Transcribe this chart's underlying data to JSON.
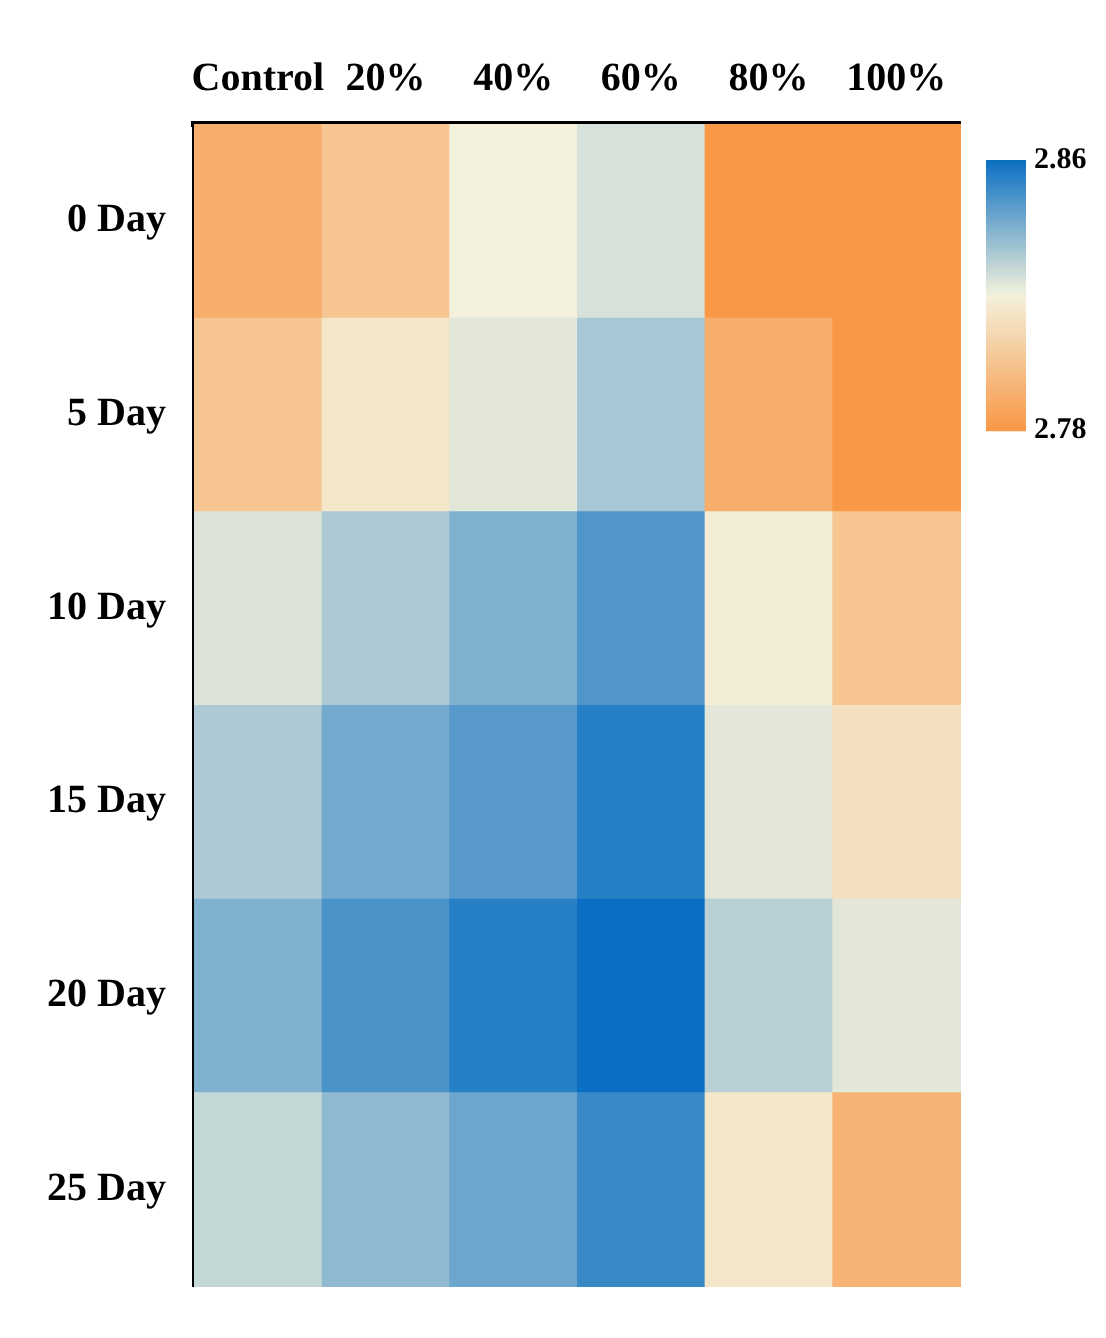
{
  "chart_data": {
    "type": "heatmap",
    "categories": [
      "Control",
      "20%",
      "40%",
      "60%",
      "80%",
      "100%"
    ],
    "y_categories": [
      "0 Day",
      "5 Day",
      "10 Day",
      "15 Day",
      "20 Day",
      "25 Day"
    ],
    "cells": [
      [
        2.79,
        2.8,
        2.82,
        2.825,
        2.78,
        2.78
      ],
      [
        2.8,
        2.815,
        2.823,
        2.833,
        2.79,
        2.78
      ],
      [
        2.824,
        2.832,
        2.84,
        2.848,
        2.818,
        2.8
      ],
      [
        2.832,
        2.842,
        2.847,
        2.855,
        2.823,
        2.812
      ],
      [
        2.84,
        2.849,
        2.855,
        2.86,
        2.83,
        2.823
      ],
      [
        2.828,
        2.837,
        2.843,
        2.852,
        2.815,
        2.792
      ]
    ],
    "colors": [
      "#f99846",
      "#f3f1dc",
      "#0a6fc2"
    ],
    "clim": [
      2.78,
      2.86
    ],
    "cticks": [
      2.78,
      2.86
    ]
  }
}
